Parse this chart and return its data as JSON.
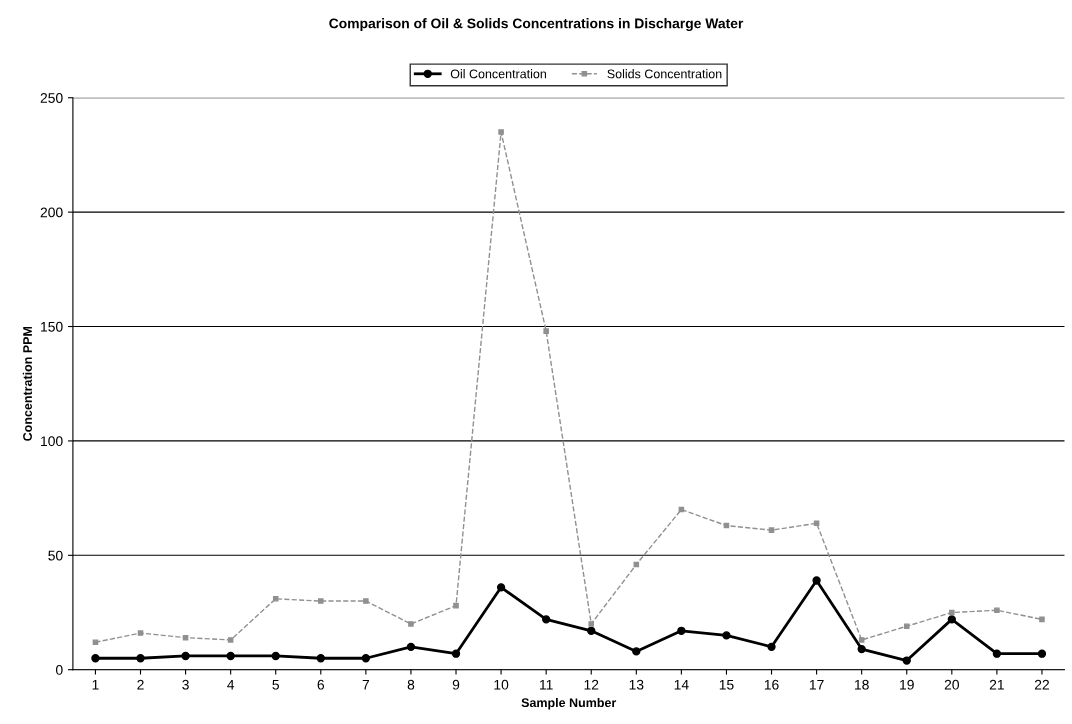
{
  "chart_data": {
    "type": "line",
    "title": "Comparison of Oil & Solids Concentrations in Discharge Water",
    "xlabel": "Sample Number",
    "ylabel": "Concentration PPM",
    "categories": [
      "1",
      "2",
      "3",
      "4",
      "5",
      "6",
      "7",
      "8",
      "9",
      "10",
      "11",
      "12",
      "13",
      "14",
      "15",
      "16",
      "17",
      "18",
      "19",
      "20",
      "21",
      "22"
    ],
    "series": [
      {
        "name": "Oil Concentration",
        "color": "#000000",
        "marker": "circle",
        "line_style": "solid",
        "values": [
          5,
          5,
          6,
          6,
          6,
          5,
          5,
          10,
          7,
          36,
          22,
          17,
          8,
          17,
          15,
          10,
          39,
          9,
          4,
          22,
          7,
          7
        ]
      },
      {
        "name": "Solids Concentration",
        "color": "#909090",
        "marker": "square",
        "line_style": "dashed",
        "values": [
          12,
          16,
          14,
          13,
          31,
          30,
          30,
          20,
          28,
          235,
          148,
          20,
          46,
          70,
          63,
          61,
          64,
          13,
          19,
          25,
          26,
          22
        ]
      }
    ],
    "ylim": [
      0,
      250
    ],
    "yticks": [
      0,
      50,
      100,
      150,
      200,
      250
    ],
    "grid": "y",
    "legend": "top"
  }
}
